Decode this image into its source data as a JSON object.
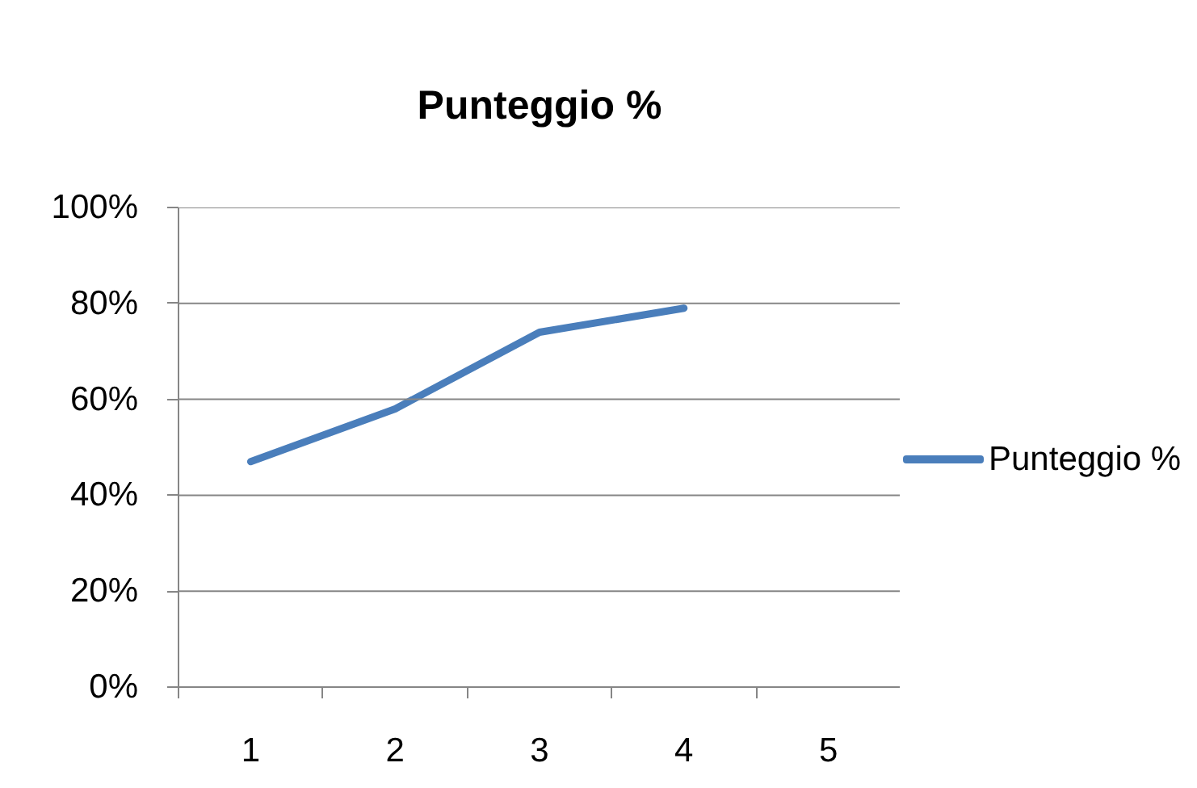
{
  "chart_data": {
    "type": "line",
    "title": "Punteggio %",
    "categories": [
      "1",
      "2",
      "3",
      "4",
      "5"
    ],
    "series": [
      {
        "name": "Punteggio %",
        "color": "#4a7ebb",
        "values": [
          47,
          58,
          74,
          79,
          null
        ]
      }
    ],
    "ylim": [
      0,
      100
    ],
    "yticks": [
      {
        "value": 0,
        "label": "0%"
      },
      {
        "value": 20,
        "label": "20%"
      },
      {
        "value": 40,
        "label": "40%"
      },
      {
        "value": 60,
        "label": "60%"
      },
      {
        "value": 80,
        "label": "80%"
      },
      {
        "value": 100,
        "label": "100%"
      }
    ],
    "grid": "y",
    "legend": "right"
  }
}
